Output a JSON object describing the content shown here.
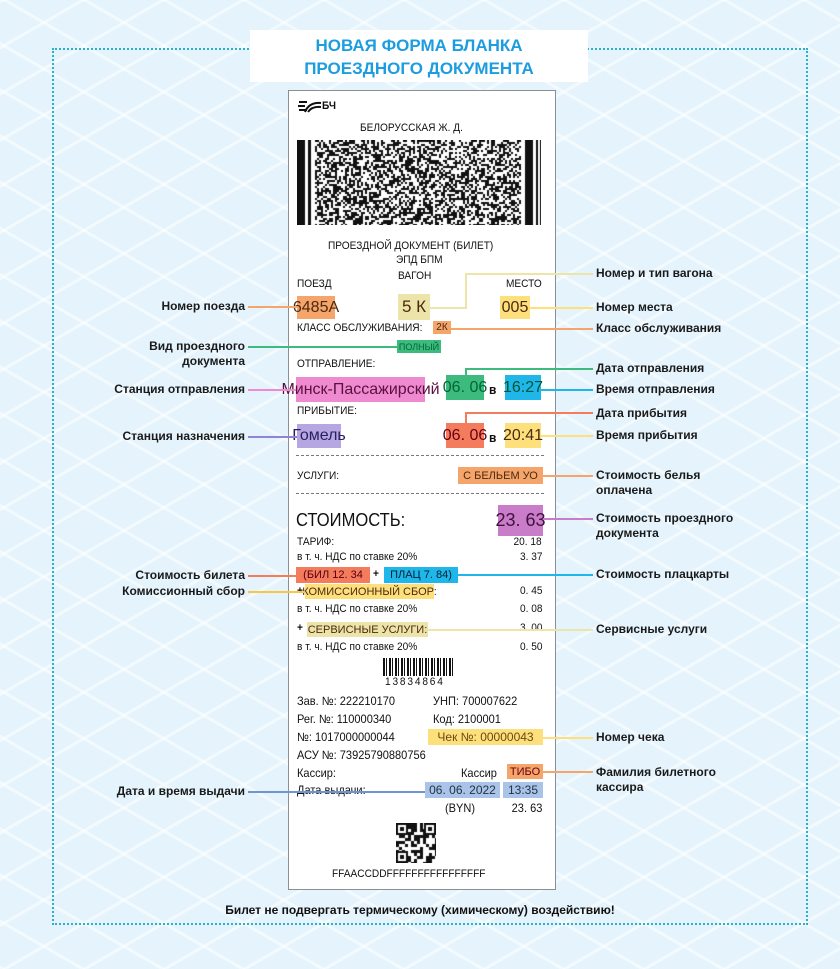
{
  "title": {
    "line1": "НОВАЯ ФОРМА БЛАНКА",
    "line2": "ПРОЕЗДНОГО ДОКУМЕНТА"
  },
  "colors": {
    "title": "#1c9ddf",
    "train": "#f5a46a",
    "wagon": "#ece4a8",
    "seat": "#fde07c",
    "class": "#f5a46a",
    "doc_type": "#3dbb7e",
    "dep_station": "#f08ad0",
    "arr_station": "#b6a6e2",
    "dep_date": "#3dbb7e",
    "dep_time": "#1fb6ea",
    "arr_date": "#f47c5c",
    "arr_time": "#fde07c",
    "services": "#f5a46a",
    "cost": "#c97dc8",
    "bil": "#f47c5c",
    "plac": "#1fb6ea",
    "commission": "#fde07c",
    "service_fee": "#ece4a8",
    "receipt": "#fde07c",
    "cashier": "#f5a46a",
    "issue": "#a9c4e8"
  },
  "ticket": {
    "logo_text": "БЧ",
    "railway": "БЕЛОРУССКАЯ Ж. Д.",
    "doc_title": "ПРОЕЗДНОЙ ДОКУМЕНТ (БИЛЕТ)",
    "doc_sub": "ЭПД БПМ",
    "train_label": "ПОЕЗД",
    "wagon_label": "ВАГОН",
    "seat_label": "МЕСТО",
    "train": "6485А",
    "wagon": "5 К",
    "seat": "005",
    "class_label": "КЛАСС ОБСЛУЖИВАНИЯ:",
    "class": "2К",
    "doc_type": "ПОЛНЫЙ",
    "dep_label": "ОТПРАВЛЕНИЕ:",
    "dep_station": "Минск-Пассажирский",
    "dep_date": "06. 06",
    "dep_time": "16:27",
    "at": "в",
    "arr_label": "ПРИБЫТИЕ:",
    "arr_station": "Гомель",
    "arr_date": "06. 06",
    "arr_time": "20:41",
    "services_label": "УСЛУГИ:",
    "services": "С БЕЛЬЕМ УО",
    "cost_label": "СТОИМОСТЬ:",
    "cost": "23. 63",
    "tariff_label": "ТАРИФ:",
    "tariff": "20. 18",
    "vat_label": "в т. ч.  НДС по ставке 20%",
    "vat1": "3. 37",
    "bil": "(БИЛ 12. 34",
    "plus": "+",
    "plac": "ПЛАЦ 7. 84)",
    "commission_label": "КОМИССИОННЫЙ СБОР:",
    "commission": "0. 45",
    "vat2": "0. 08",
    "service_fee_label": "СЕРВИСНЫЕ УСЛУГИ:",
    "service_fee": "3. 00",
    "vat3": "0. 50",
    "barcode_number": "13834864",
    "zav": "Зав. №:  222210170",
    "unp": "УНП:  700007622",
    "reg": "Рег. №:  110000340",
    "kod": "Код:  2100001",
    "num": "№:  1017000000044",
    "receipt": "Чек №:  00000043",
    "asu": "АСУ №:  73925790880756",
    "cashier_label": "Кассир:",
    "cashier_label2": "Кассир",
    "cashier": "ТИБО",
    "issue_label": "Дата выдачи:",
    "issue_date": "06. 06. 2022",
    "issue_time": "13:35",
    "currency": "(BYN)",
    "total": "23. 63",
    "code": "FFAACCDDFFFFFFFFFFFFFFFF"
  },
  "labels": {
    "train": "Номер поезда",
    "doc_type": "Вид проездного документа",
    "dep_station": "Станция отправления",
    "arr_station": "Станция назначения",
    "bil": "Стоимость билета",
    "commission": "Комиссионный сбор",
    "issue": "Дата и время выдачи",
    "wagon": "Номер и тип вагона",
    "seat": "Номер места",
    "class": "Класс обслуживания",
    "dep_date": "Дата отправления",
    "dep_time": "Время отправления",
    "arr_date": "Дата прибытия",
    "arr_time": "Время прибытия",
    "linen": "Стоимость белья оплачена",
    "cost": "Стоимость проездного документа",
    "plac": "Стоимость плацкарты",
    "service_fee": "Сервисные услуги",
    "receipt": "Номер чека",
    "cashier": "Фамилия билетного кассира"
  },
  "footer": "Билет не подвергать термическому (химическому) воздействию!"
}
